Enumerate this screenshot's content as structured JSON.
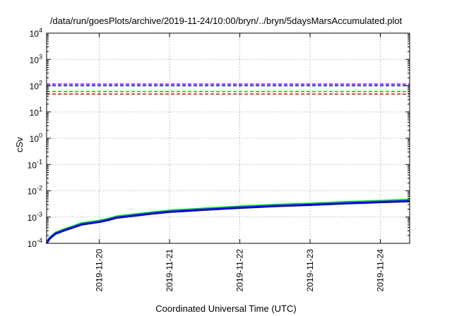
{
  "chart_data": {
    "type": "line",
    "title": "/data/run/goesPlots/archive/2019-11-24/10:00/bryn/../bryn/5daysMarsAccumulated.plot",
    "xlabel": "Coordinated Universal Time (UTC)",
    "ylabel": "cSv",
    "yscale": "log",
    "ylim": [
      0.0001,
      10000
    ],
    "xlim": [
      "2019-11-19T06:00",
      "2019-11-24T10:00"
    ],
    "grid": true,
    "x_ticks": [
      "2019-11-20",
      "2019-11-21",
      "2019-11-22",
      "2019-11-23",
      "2019-11-24"
    ],
    "y_ticks": [
      {
        "base": "10",
        "exp": "-4"
      },
      {
        "base": "10",
        "exp": "-3"
      },
      {
        "base": "10",
        "exp": "-2"
      },
      {
        "base": "10",
        "exp": "-1"
      },
      {
        "base": "10",
        "exp": "0"
      },
      {
        "base": "10",
        "exp": "1"
      },
      {
        "base": "10",
        "exp": "2"
      },
      {
        "base": "10",
        "exp": "3"
      },
      {
        "base": "10",
        "exp": "4"
      }
    ],
    "thresholds": [
      {
        "value": 115,
        "color": "#8800cc",
        "style": "dashed"
      },
      {
        "value": 100,
        "color": "#0000ee",
        "style": "dashed"
      },
      {
        "value": 60,
        "color": "#00cc00",
        "style": "dashed"
      },
      {
        "value": 48,
        "color": "#ee0000",
        "style": "dashed"
      }
    ],
    "series": [
      {
        "color": "#00cc00",
        "x": [
          "2019-11-19T06:00",
          "2019-11-19T07:00",
          "2019-11-19T09:00",
          "2019-11-19T12:00",
          "2019-11-19T15:00",
          "2019-11-19T18:00",
          "2019-11-20T00:00",
          "2019-11-20T03:00",
          "2019-11-20T06:00",
          "2019-11-20T12:00",
          "2019-11-20T18:00",
          "2019-11-21T00:00",
          "2019-11-21T12:00",
          "2019-11-22T00:00",
          "2019-11-22T12:00",
          "2019-11-23T00:00",
          "2019-11-23T12:00",
          "2019-11-24T00:00",
          "2019-11-24T10:00"
        ],
        "y": [
          0.0001,
          0.00016,
          0.00025,
          0.00034,
          0.00044,
          0.00058,
          0.00072,
          0.00085,
          0.00105,
          0.00125,
          0.0015,
          0.00175,
          0.0021,
          0.0025,
          0.0029,
          0.0032,
          0.0037,
          0.0041,
          0.0045
        ]
      },
      {
        "color": "#0000ee",
        "x": [
          "2019-11-19T06:00",
          "2019-11-19T07:00",
          "2019-11-19T09:00",
          "2019-11-19T12:00",
          "2019-11-19T15:00",
          "2019-11-19T18:00",
          "2019-11-20T00:00",
          "2019-11-20T03:00",
          "2019-11-20T06:00",
          "2019-11-20T12:00",
          "2019-11-20T18:00",
          "2019-11-21T00:00",
          "2019-11-21T12:00",
          "2019-11-22T00:00",
          "2019-11-22T12:00",
          "2019-11-23T00:00",
          "2019-11-23T12:00",
          "2019-11-24T00:00",
          "2019-11-24T10:00"
        ],
        "y": [
          0.0001,
          0.00015,
          0.00023,
          0.00031,
          0.0004,
          0.00052,
          0.00065,
          0.00077,
          0.00095,
          0.00113,
          0.00135,
          0.00158,
          0.0019,
          0.00225,
          0.0026,
          0.0029,
          0.0033,
          0.0037,
          0.004
        ]
      }
    ]
  }
}
